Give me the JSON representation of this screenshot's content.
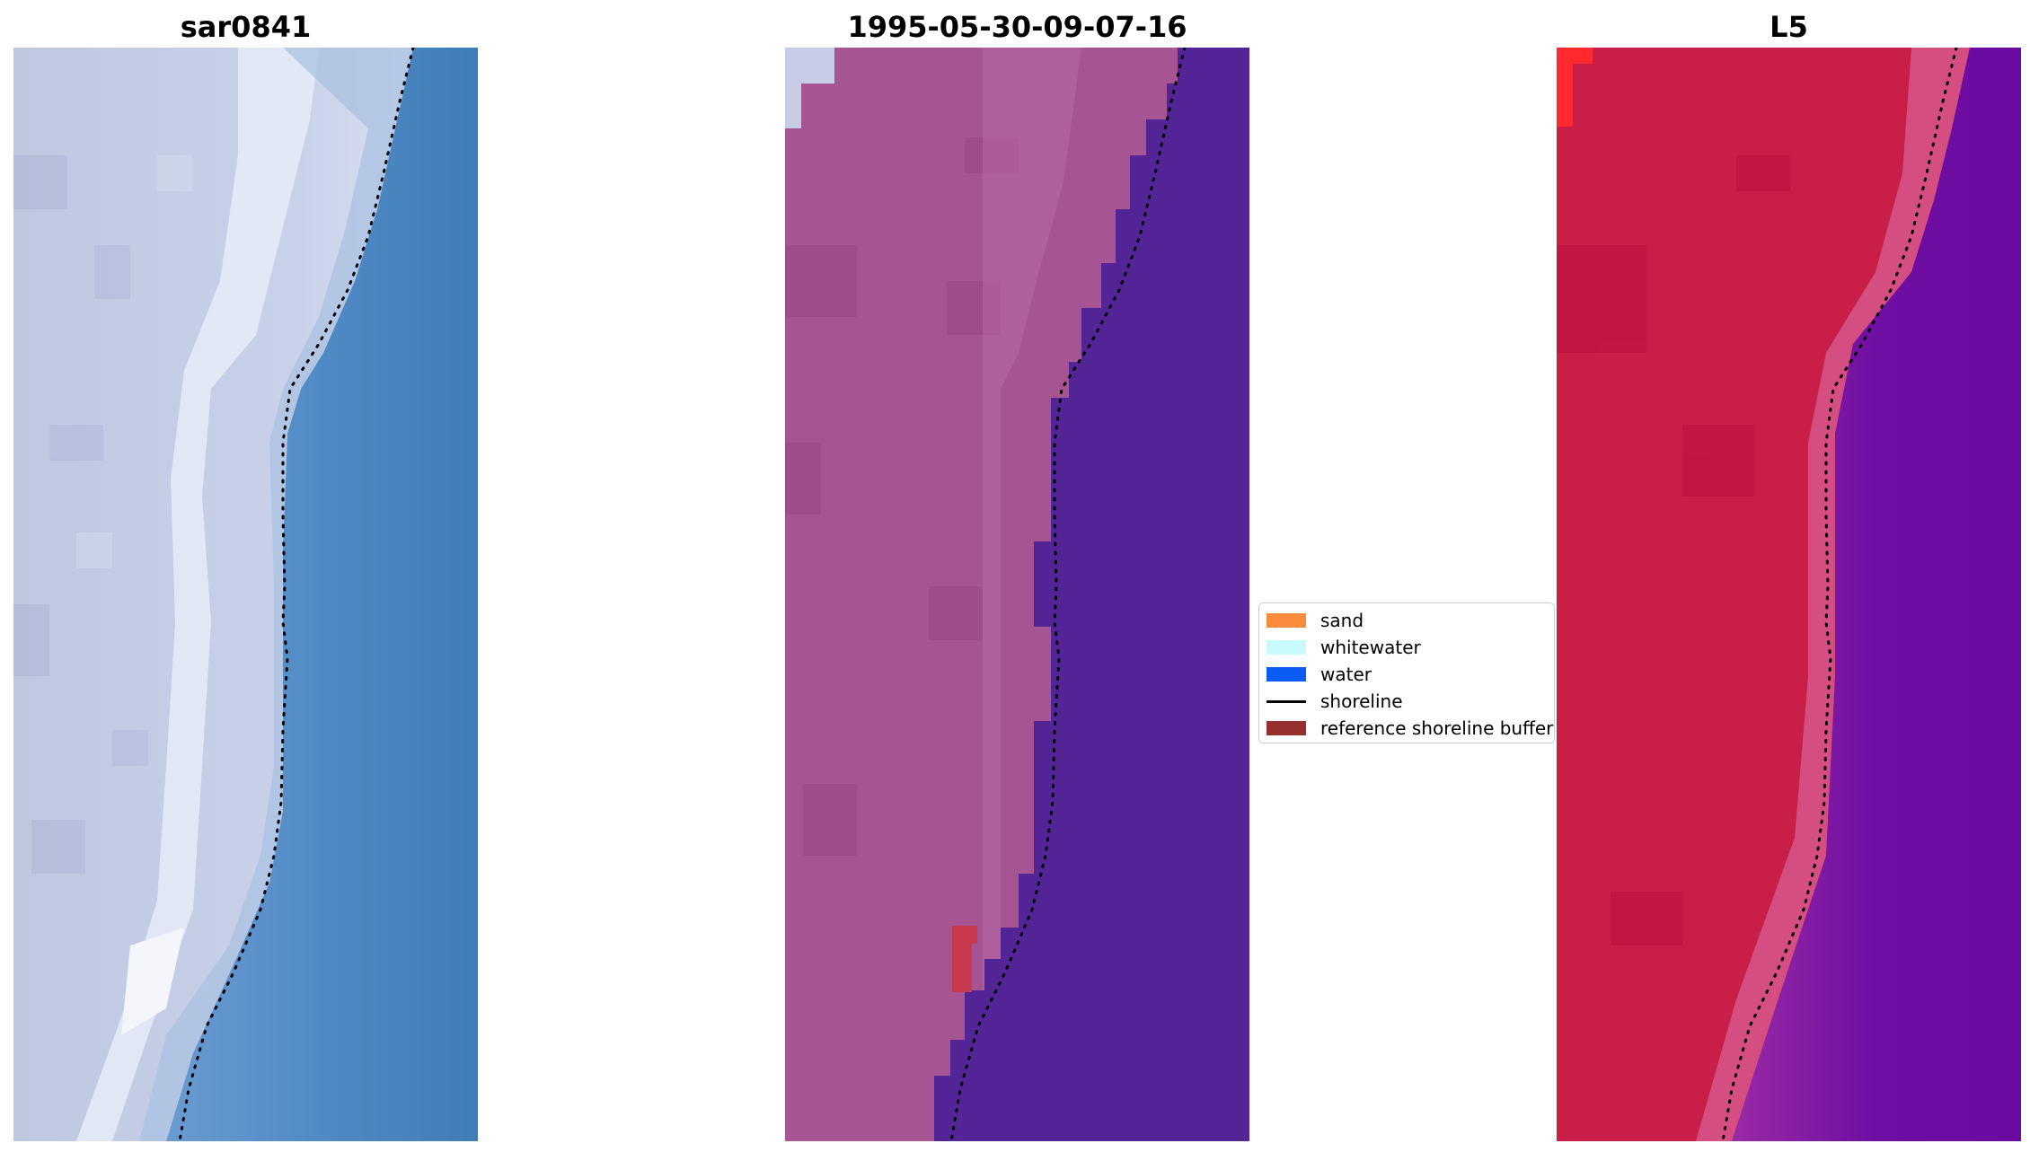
{
  "panels": [
    {
      "title": "sar0841"
    },
    {
      "title": "1995-05-30-09-07-16"
    },
    {
      "title": "L5"
    }
  ],
  "legend": {
    "items": [
      {
        "label": "sand",
        "color": "#f98c3c",
        "kind": "patch"
      },
      {
        "label": "whitewater",
        "color": "#c8fcfc",
        "kind": "patch"
      },
      {
        "label": "water",
        "color": "#0a5cf5",
        "kind": "patch"
      },
      {
        "label": "shoreline",
        "color": "#000000",
        "kind": "line"
      },
      {
        "label": "reference shoreline buffer",
        "color": "#96302f",
        "kind": "patch"
      }
    ]
  },
  "colors": {
    "rgb_land": "#c7d0e6",
    "rgb_water": "#4f8bc4",
    "class_land": "#a65592",
    "class_water": "#522496",
    "index_land": "#c81e48",
    "index_water": "#7a12a4",
    "shoreline_dots": "#000000"
  }
}
